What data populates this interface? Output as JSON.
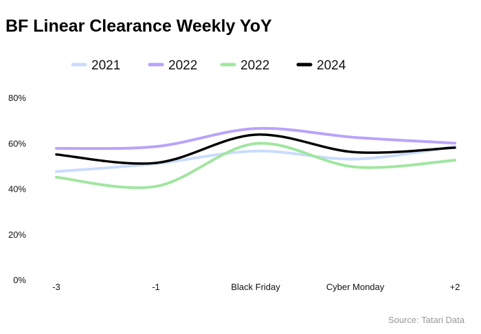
{
  "chart_data": {
    "type": "line",
    "title": "BF Linear Clearance Weekly YoY",
    "categories": [
      "-3",
      "-1",
      "Black Friday",
      "Cyber Monday",
      "+2"
    ],
    "y_ticks": [
      "0%",
      "20%",
      "40%",
      "60%",
      "80%"
    ],
    "ylim": [
      0,
      80
    ],
    "y_unit": "%",
    "grid": false,
    "legend_position": "top",
    "series": [
      {
        "name": "2021",
        "color": "#c9dcff",
        "values": [
          47.5,
          51,
          56.5,
          53,
          58.5
        ]
      },
      {
        "name": "2022",
        "color": "#b9a3fb",
        "values": [
          57.7,
          58.5,
          66.4,
          62.5,
          60
        ]
      },
      {
        "name": "2022",
        "color": "#a0e6a0",
        "values": [
          45,
          41,
          59.8,
          49.5,
          52.5
        ]
      },
      {
        "name": "2024",
        "color": "#000000",
        "values": [
          55,
          51.3,
          63.7,
          56,
          58
        ]
      }
    ],
    "source": "Source: Tatari Data"
  }
}
